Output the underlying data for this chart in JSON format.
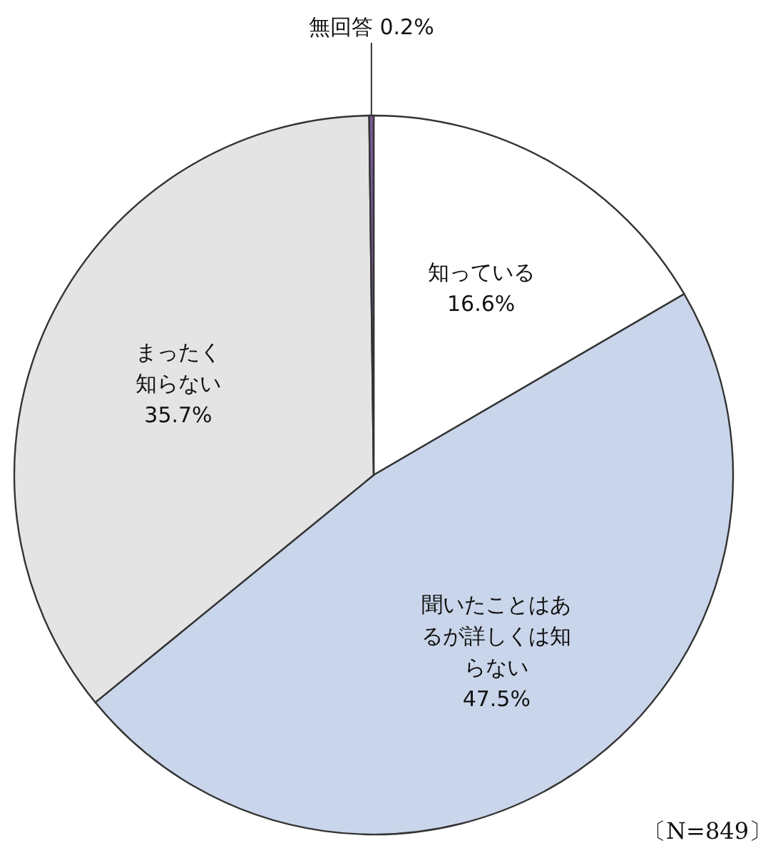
{
  "chart_data": {
    "type": "pie",
    "categories": [
      "知っている",
      "聞いたことはあるが詳しくは知らない",
      "まったく知らない",
      "無回答"
    ],
    "values": [
      16.6,
      47.5,
      35.7,
      0.2
    ],
    "colors": [
      "#ffffff",
      "#c9d5ea",
      "#e4e4e4",
      "#7a5a9a"
    ],
    "value_labels": [
      "16.6%",
      "47.5%",
      "35.7%",
      "0.2%"
    ],
    "annotations": [
      "〔N=849〕"
    ]
  }
}
